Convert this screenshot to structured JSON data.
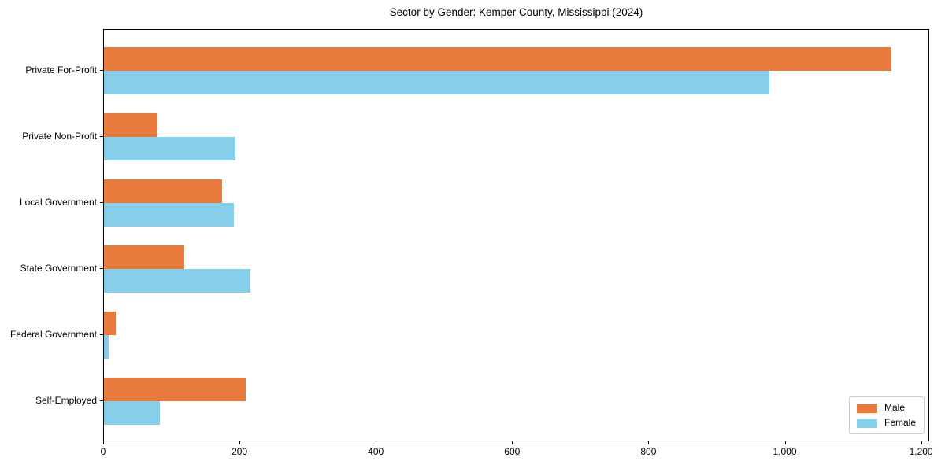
{
  "chart_data": {
    "type": "bar",
    "orientation": "horizontal",
    "title": "Sector by Gender: Kemper County, Mississippi (2024)",
    "categories": [
      "Private For-Profit",
      "Private Non-Profit",
      "Local Government",
      "State Government",
      "Federal Government",
      "Self-Employed"
    ],
    "series": [
      {
        "name": "Male",
        "color": "#E87A3C",
        "values": [
          1155,
          79,
          173,
          118,
          17,
          208
        ]
      },
      {
        "name": "Female",
        "color": "#87CEEB",
        "values": [
          976,
          193,
          191,
          215,
          7,
          82
        ]
      }
    ],
    "x_ticks": [
      {
        "value": 0,
        "label": "0"
      },
      {
        "value": 200,
        "label": "200"
      },
      {
        "value": 400,
        "label": "400"
      },
      {
        "value": 600,
        "label": "600"
      },
      {
        "value": 800,
        "label": "800"
      },
      {
        "value": 1000,
        "label": "1,000"
      },
      {
        "value": 1200,
        "label": "1,200"
      }
    ],
    "xlabel": "",
    "ylabel": "",
    "xlim": [
      0,
      1212
    ],
    "grid": false,
    "legend_position": "lower right"
  },
  "colors": {
    "spine": "#000000",
    "text": "#000000",
    "background": "#ffffff",
    "legend_border": "#cccccc"
  }
}
